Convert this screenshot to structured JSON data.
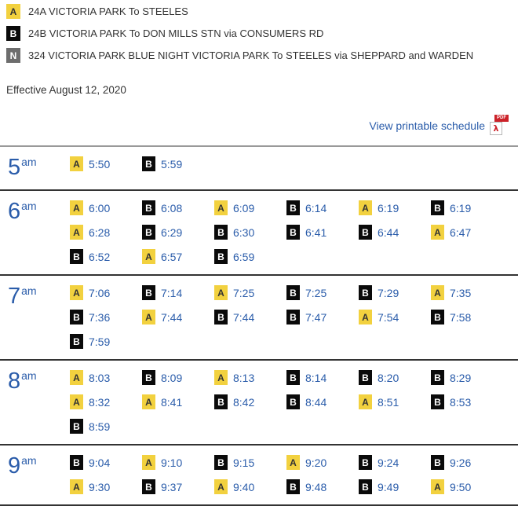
{
  "legend": {
    "items": [
      {
        "badge": "A",
        "badge_style": "yellow",
        "label": "24A VICTORIA PARK To STEELES"
      },
      {
        "badge": "B",
        "badge_style": "black",
        "label": "24B VICTORIA PARK To DON MILLS STN via CONSUMERS RD"
      },
      {
        "badge": "N",
        "badge_style": "gray",
        "label": "324 VICTORIA PARK BLUE NIGHT VICTORIA PARK To STEELES via SHEPPARD and WARDEN"
      }
    ]
  },
  "effective_date": "Effective August 12, 2020",
  "printable": {
    "link_label": "View printable schedule",
    "pdf_label": "PDF",
    "pdf_glyph": "λ"
  },
  "colors": {
    "badge_yellow": "#f2d13f",
    "badge_black": "#0a0a0a",
    "badge_gray": "#6d6d6d",
    "time_blue": "#2a5caa",
    "link_blue": "#2a5caa",
    "text_dark": "#333333",
    "separator_top": "#999999",
    "separator_row": "#333333",
    "pdf_red": "#cc2229"
  },
  "schedule": {
    "rows": [
      {
        "hour": "5",
        "period": "am",
        "times": [
          {
            "route": "A",
            "time": "5:50"
          },
          {
            "route": "B",
            "time": "5:59"
          }
        ]
      },
      {
        "hour": "6",
        "period": "am",
        "times": [
          {
            "route": "A",
            "time": "6:00"
          },
          {
            "route": "B",
            "time": "6:08"
          },
          {
            "route": "A",
            "time": "6:09"
          },
          {
            "route": "B",
            "time": "6:14"
          },
          {
            "route": "A",
            "time": "6:19"
          },
          {
            "route": "B",
            "time": "6:19"
          },
          {
            "route": "A",
            "time": "6:28"
          },
          {
            "route": "B",
            "time": "6:29"
          },
          {
            "route": "B",
            "time": "6:30"
          },
          {
            "route": "B",
            "time": "6:41"
          },
          {
            "route": "B",
            "time": "6:44"
          },
          {
            "route": "A",
            "time": "6:47"
          },
          {
            "route": "B",
            "time": "6:52"
          },
          {
            "route": "A",
            "time": "6:57"
          },
          {
            "route": "B",
            "time": "6:59"
          }
        ]
      },
      {
        "hour": "7",
        "period": "am",
        "times": [
          {
            "route": "A",
            "time": "7:06"
          },
          {
            "route": "B",
            "time": "7:14"
          },
          {
            "route": "A",
            "time": "7:25"
          },
          {
            "route": "B",
            "time": "7:25"
          },
          {
            "route": "B",
            "time": "7:29"
          },
          {
            "route": "A",
            "time": "7:35"
          },
          {
            "route": "B",
            "time": "7:36"
          },
          {
            "route": "A",
            "time": "7:44"
          },
          {
            "route": "B",
            "time": "7:44"
          },
          {
            "route": "B",
            "time": "7:47"
          },
          {
            "route": "A",
            "time": "7:54"
          },
          {
            "route": "B",
            "time": "7:58"
          },
          {
            "route": "B",
            "time": "7:59"
          }
        ]
      },
      {
        "hour": "8",
        "period": "am",
        "times": [
          {
            "route": "A",
            "time": "8:03"
          },
          {
            "route": "B",
            "time": "8:09"
          },
          {
            "route": "A",
            "time": "8:13"
          },
          {
            "route": "B",
            "time": "8:14"
          },
          {
            "route": "B",
            "time": "8:20"
          },
          {
            "route": "B",
            "time": "8:29"
          },
          {
            "route": "A",
            "time": "8:32"
          },
          {
            "route": "A",
            "time": "8:41"
          },
          {
            "route": "B",
            "time": "8:42"
          },
          {
            "route": "B",
            "time": "8:44"
          },
          {
            "route": "A",
            "time": "8:51"
          },
          {
            "route": "B",
            "time": "8:53"
          },
          {
            "route": "B",
            "time": "8:59"
          }
        ]
      },
      {
        "hour": "9",
        "period": "am",
        "times": [
          {
            "route": "B",
            "time": "9:04"
          },
          {
            "route": "A",
            "time": "9:10"
          },
          {
            "route": "B",
            "time": "9:15"
          },
          {
            "route": "A",
            "time": "9:20"
          },
          {
            "route": "B",
            "time": "9:24"
          },
          {
            "route": "B",
            "time": "9:26"
          },
          {
            "route": "A",
            "time": "9:30"
          },
          {
            "route": "B",
            "time": "9:37"
          },
          {
            "route": "A",
            "time": "9:40"
          },
          {
            "route": "B",
            "time": "9:48"
          },
          {
            "route": "B",
            "time": "9:49"
          },
          {
            "route": "A",
            "time": "9:50"
          }
        ]
      }
    ]
  }
}
